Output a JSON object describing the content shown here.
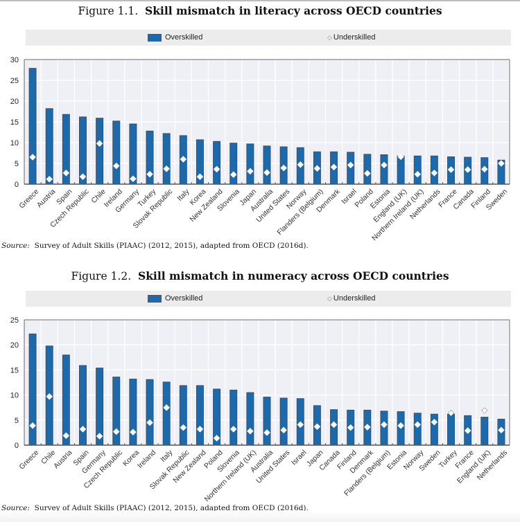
{
  "chart_data": [
    {
      "type": "bar",
      "title_number": "Figure 1.1.",
      "title": "Skill mismatch in literacy across OECD countries",
      "xlabel": "",
      "ylabel": "",
      "ylim": [
        0,
        30
      ],
      "yticks": [
        0,
        5,
        10,
        15,
        20,
        25,
        30
      ],
      "grid": true,
      "legend_position": "top",
      "legend": [
        {
          "name": "Overskilled",
          "marker": "bar"
        },
        {
          "name": "Underskilled",
          "marker": "diamond"
        }
      ],
      "categories": [
        "Greece",
        "Austria",
        "Spain",
        "Czech Republic",
        "Chile",
        "Ireland",
        "Germany",
        "Turkey",
        "Slovak Republic",
        "Italy",
        "Korea",
        "New Zealand",
        "Slovenia",
        "Japan",
        "Australia",
        "United States",
        "Norway",
        "Flanders (Belgium)",
        "Denmark",
        "Israel",
        "Poland",
        "Estonia",
        "England (UK)",
        "Northern Ireland (UK)",
        "Netherlands",
        "France",
        "Canada",
        "Finland",
        "Sweden"
      ],
      "series": [
        {
          "name": "Overskilled",
          "type": "bar",
          "values": [
            27.9,
            18.2,
            16.8,
            16.2,
            15.9,
            15.2,
            14.5,
            12.8,
            12.2,
            11.7,
            10.7,
            10.3,
            9.9,
            9.7,
            9.2,
            9.0,
            8.8,
            7.8,
            7.8,
            7.7,
            7.2,
            7.1,
            6.8,
            6.8,
            6.8,
            6.6,
            6.5,
            6.4,
            5.8
          ]
        },
        {
          "name": "Underskilled",
          "type": "scatter",
          "values": [
            6.5,
            1.2,
            2.7,
            1.8,
            9.8,
            4.4,
            1.3,
            2.4,
            3.7,
            6.0,
            1.8,
            3.6,
            2.3,
            3.1,
            2.8,
            3.9,
            4.7,
            3.8,
            4.1,
            4.6,
            2.6,
            4.6,
            6.6,
            2.4,
            2.7,
            3.5,
            3.5,
            3.6,
            5.0
          ]
        }
      ],
      "source": {
        "label": "Source:",
        "text": "Survey of Adult Skills (PIAAC) (2012, 2015), adapted from OECD (2016d)."
      }
    },
    {
      "type": "bar",
      "title_number": "Figure 1.2.",
      "title": "Skill mismatch in numeracy across OECD countries",
      "xlabel": "",
      "ylabel": "",
      "ylim": [
        0,
        25
      ],
      "yticks": [
        0,
        5,
        10,
        15,
        20,
        25
      ],
      "grid": true,
      "legend_position": "top",
      "legend": [
        {
          "name": "Overskilled",
          "marker": "bar"
        },
        {
          "name": "Underskilled",
          "marker": "diamond"
        }
      ],
      "categories": [
        "Greece",
        "Chile",
        "Austria",
        "Spain",
        "Germany",
        "Czech Republic",
        "Korea",
        "Ireland",
        "Italy",
        "Slovak Republic",
        "New Zealand",
        "Poland",
        "Slovenia",
        "Northern Ireland (UK)",
        "Australia",
        "United States",
        "Israel",
        "Japan",
        "Canada",
        "Finland",
        "Denmark",
        "Flanders (Belgium)",
        "Estonia",
        "Norway",
        "Sweden",
        "Turkey",
        "France",
        "England (UK)",
        "Netherlands"
      ],
      "series": [
        {
          "name": "Overskilled",
          "type": "bar",
          "values": [
            22.2,
            19.8,
            18.0,
            15.9,
            15.4,
            13.6,
            13.2,
            13.1,
            12.6,
            11.9,
            11.9,
            11.2,
            11.0,
            10.5,
            9.6,
            9.4,
            9.3,
            7.9,
            7.1,
            7.0,
            7.0,
            6.8,
            6.7,
            6.4,
            6.2,
            6.2,
            5.9,
            5.6,
            5.2
          ]
        },
        {
          "name": "Underskilled",
          "type": "scatter",
          "values": [
            3.9,
            9.7,
            1.9,
            3.2,
            1.8,
            2.7,
            2.6,
            4.5,
            7.5,
            3.5,
            3.2,
            1.4,
            3.2,
            2.8,
            2.5,
            3.0,
            4.1,
            3.7,
            4.1,
            3.5,
            3.6,
            4.1,
            3.9,
            4.1,
            4.6,
            6.4,
            2.9,
            6.9,
            3.0
          ]
        }
      ],
      "source": {
        "label": "Source:",
        "text": "Survey of Adult Skills (PIAAC) (2012, 2015), adapted from OECD (2016d)."
      }
    }
  ]
}
